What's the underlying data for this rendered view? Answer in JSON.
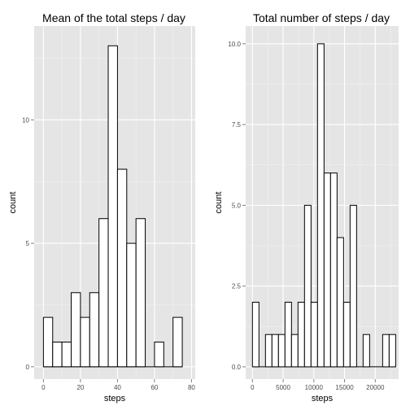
{
  "chart_data": [
    {
      "type": "bar",
      "title": "Mean of the total steps / day",
      "xlabel": "steps",
      "ylabel": "count",
      "xlim": [
        -5,
        82
      ],
      "ylim": [
        -0.5,
        13.8
      ],
      "xticks": [
        0,
        20,
        40,
        60,
        80
      ],
      "xtick_labels": [
        "0",
        "20",
        "40",
        "60",
        "80"
      ],
      "yticks": [
        0,
        5,
        10
      ],
      "ytick_labels": [
        "0",
        "5",
        "10"
      ],
      "grid": true,
      "bin_width": 5,
      "bins": [
        {
          "start": 0,
          "end": 5,
          "count": 2
        },
        {
          "start": 5,
          "end": 10,
          "count": 1
        },
        {
          "start": 10,
          "end": 15,
          "count": 1
        },
        {
          "start": 15,
          "end": 20,
          "count": 3
        },
        {
          "start": 20,
          "end": 25,
          "count": 2
        },
        {
          "start": 25,
          "end": 30,
          "count": 3
        },
        {
          "start": 30,
          "end": 35,
          "count": 6
        },
        {
          "start": 35,
          "end": 40,
          "count": 13
        },
        {
          "start": 40,
          "end": 45,
          "count": 8
        },
        {
          "start": 45,
          "end": 50,
          "count": 5
        },
        {
          "start": 50,
          "end": 55,
          "count": 6
        },
        {
          "start": 55,
          "end": 60,
          "count": 0
        },
        {
          "start": 60,
          "end": 65,
          "count": 1
        },
        {
          "start": 65,
          "end": 70,
          "count": 0
        },
        {
          "start": 70,
          "end": 75,
          "count": 2
        }
      ]
    },
    {
      "type": "bar",
      "title": "Total number of steps / day",
      "xlabel": "steps",
      "ylabel": "count",
      "xlim": [
        -1100,
        23800
      ],
      "ylim": [
        -0.38,
        10.55
      ],
      "xticks": [
        0,
        5000,
        10000,
        15000,
        20000
      ],
      "xtick_labels": [
        "0",
        "5000",
        "10000",
        "15000",
        "20000"
      ],
      "yticks": [
        0,
        2.5,
        5,
        7.5,
        10
      ],
      "ytick_labels": [
        "0.0",
        "2.5",
        "5.0",
        "7.5",
        "10.0"
      ],
      "grid": true,
      "bin_width": 1060,
      "bins": [
        {
          "start": 0,
          "end": 1060,
          "count": 2
        },
        {
          "start": 1060,
          "end": 2120,
          "count": 0
        },
        {
          "start": 2120,
          "end": 3180,
          "count": 1
        },
        {
          "start": 3180,
          "end": 4240,
          "count": 1
        },
        {
          "start": 4240,
          "end": 5300,
          "count": 1
        },
        {
          "start": 5300,
          "end": 6360,
          "count": 2
        },
        {
          "start": 6360,
          "end": 7420,
          "count": 1
        },
        {
          "start": 7420,
          "end": 8480,
          "count": 2
        },
        {
          "start": 8480,
          "end": 9540,
          "count": 5
        },
        {
          "start": 9540,
          "end": 10600,
          "count": 2
        },
        {
          "start": 10600,
          "end": 11660,
          "count": 10
        },
        {
          "start": 11660,
          "end": 12720,
          "count": 6
        },
        {
          "start": 12720,
          "end": 13780,
          "count": 6
        },
        {
          "start": 13780,
          "end": 14840,
          "count": 4
        },
        {
          "start": 14840,
          "end": 15900,
          "count": 2
        },
        {
          "start": 15900,
          "end": 16960,
          "count": 5
        },
        {
          "start": 16960,
          "end": 18020,
          "count": 0
        },
        {
          "start": 18020,
          "end": 19080,
          "count": 1
        },
        {
          "start": 19080,
          "end": 20140,
          "count": 0
        },
        {
          "start": 20140,
          "end": 21200,
          "count": 0
        },
        {
          "start": 21200,
          "end": 22260,
          "count": 1
        },
        {
          "start": 22260,
          "end": 23320,
          "count": 1
        }
      ]
    }
  ],
  "colors": {
    "panel_background": "#e5e5e5",
    "grid_major": "#ffffff",
    "grid_minor": "#f2f2f2",
    "bar_fill": "#ffffff",
    "bar_stroke": "#000000",
    "tick_text": "#4d4d4d"
  }
}
